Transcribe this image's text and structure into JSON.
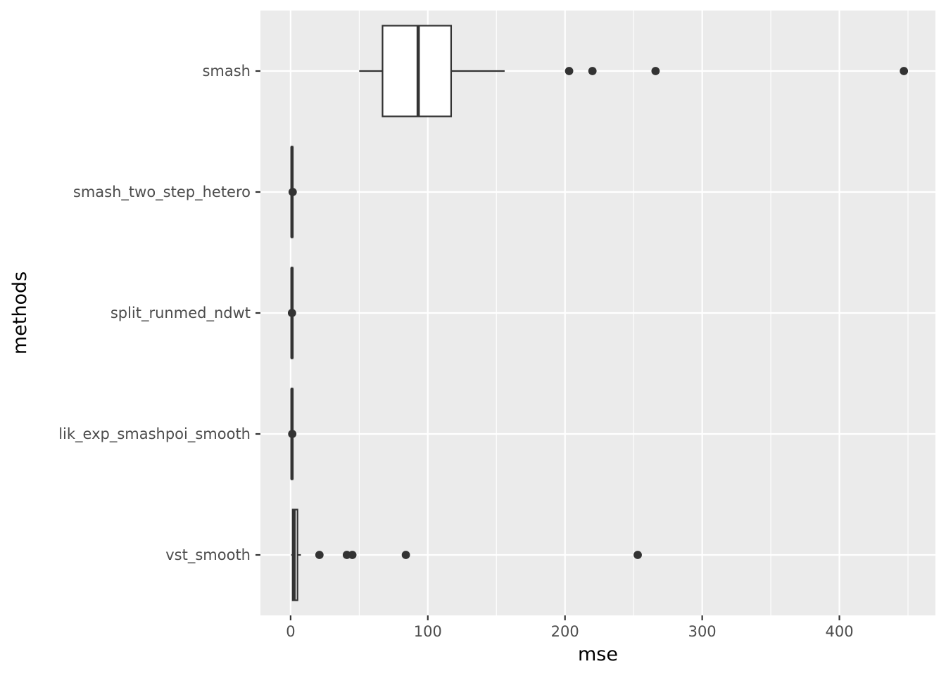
{
  "chart_data": {
    "type": "boxplot",
    "orientation": "horizontal",
    "xlabel": "mse",
    "ylabel": "methods",
    "xlim": [
      -22,
      470
    ],
    "x_ticks": [
      0,
      100,
      200,
      300,
      400
    ],
    "x_tick_labels": [
      "0",
      "100",
      "200",
      "300",
      "400"
    ],
    "grid": true,
    "legend": "none",
    "colors": {
      "panel_background": "#ebebeb",
      "grid": "#ffffff",
      "box_fill": "#ffffff",
      "box_stroke": "#333333",
      "tick_label": "#4d4d4d"
    },
    "categories": [
      "smash",
      "smash_two_step_hetero",
      "split_runmed_ndwt",
      "lik_exp_smashpoi_smooth",
      "vst_smooth"
    ],
    "boxes": [
      {
        "category": "smash",
        "whisker_low": 50,
        "q1": 67,
        "median": 93,
        "q3": 117,
        "whisker_high": 156,
        "outliers": [
          203,
          220,
          266,
          447
        ]
      },
      {
        "category": "smash_two_step_hetero",
        "whisker_low": 0.3,
        "q1": 0.6,
        "median": 1.0,
        "q3": 1.4,
        "whisker_high": 1.9,
        "outliers": [
          1.5
        ]
      },
      {
        "category": "split_runmed_ndwt",
        "whisker_low": 0.3,
        "q1": 0.6,
        "median": 1.0,
        "q3": 1.4,
        "whisker_high": 1.9,
        "outliers": [
          1.0
        ]
      },
      {
        "category": "lik_exp_smashpoi_smooth",
        "whisker_low": 0.3,
        "q1": 0.6,
        "median": 1.0,
        "q3": 1.4,
        "whisker_high": 1.9,
        "outliers": [
          1.2
        ]
      },
      {
        "category": "vst_smooth",
        "whisker_low": 0.5,
        "q1": 1.5,
        "median": 2.5,
        "q3": 5.0,
        "whisker_high": 7.5,
        "outliers": [
          21,
          41,
          45,
          84,
          253
        ]
      }
    ]
  }
}
